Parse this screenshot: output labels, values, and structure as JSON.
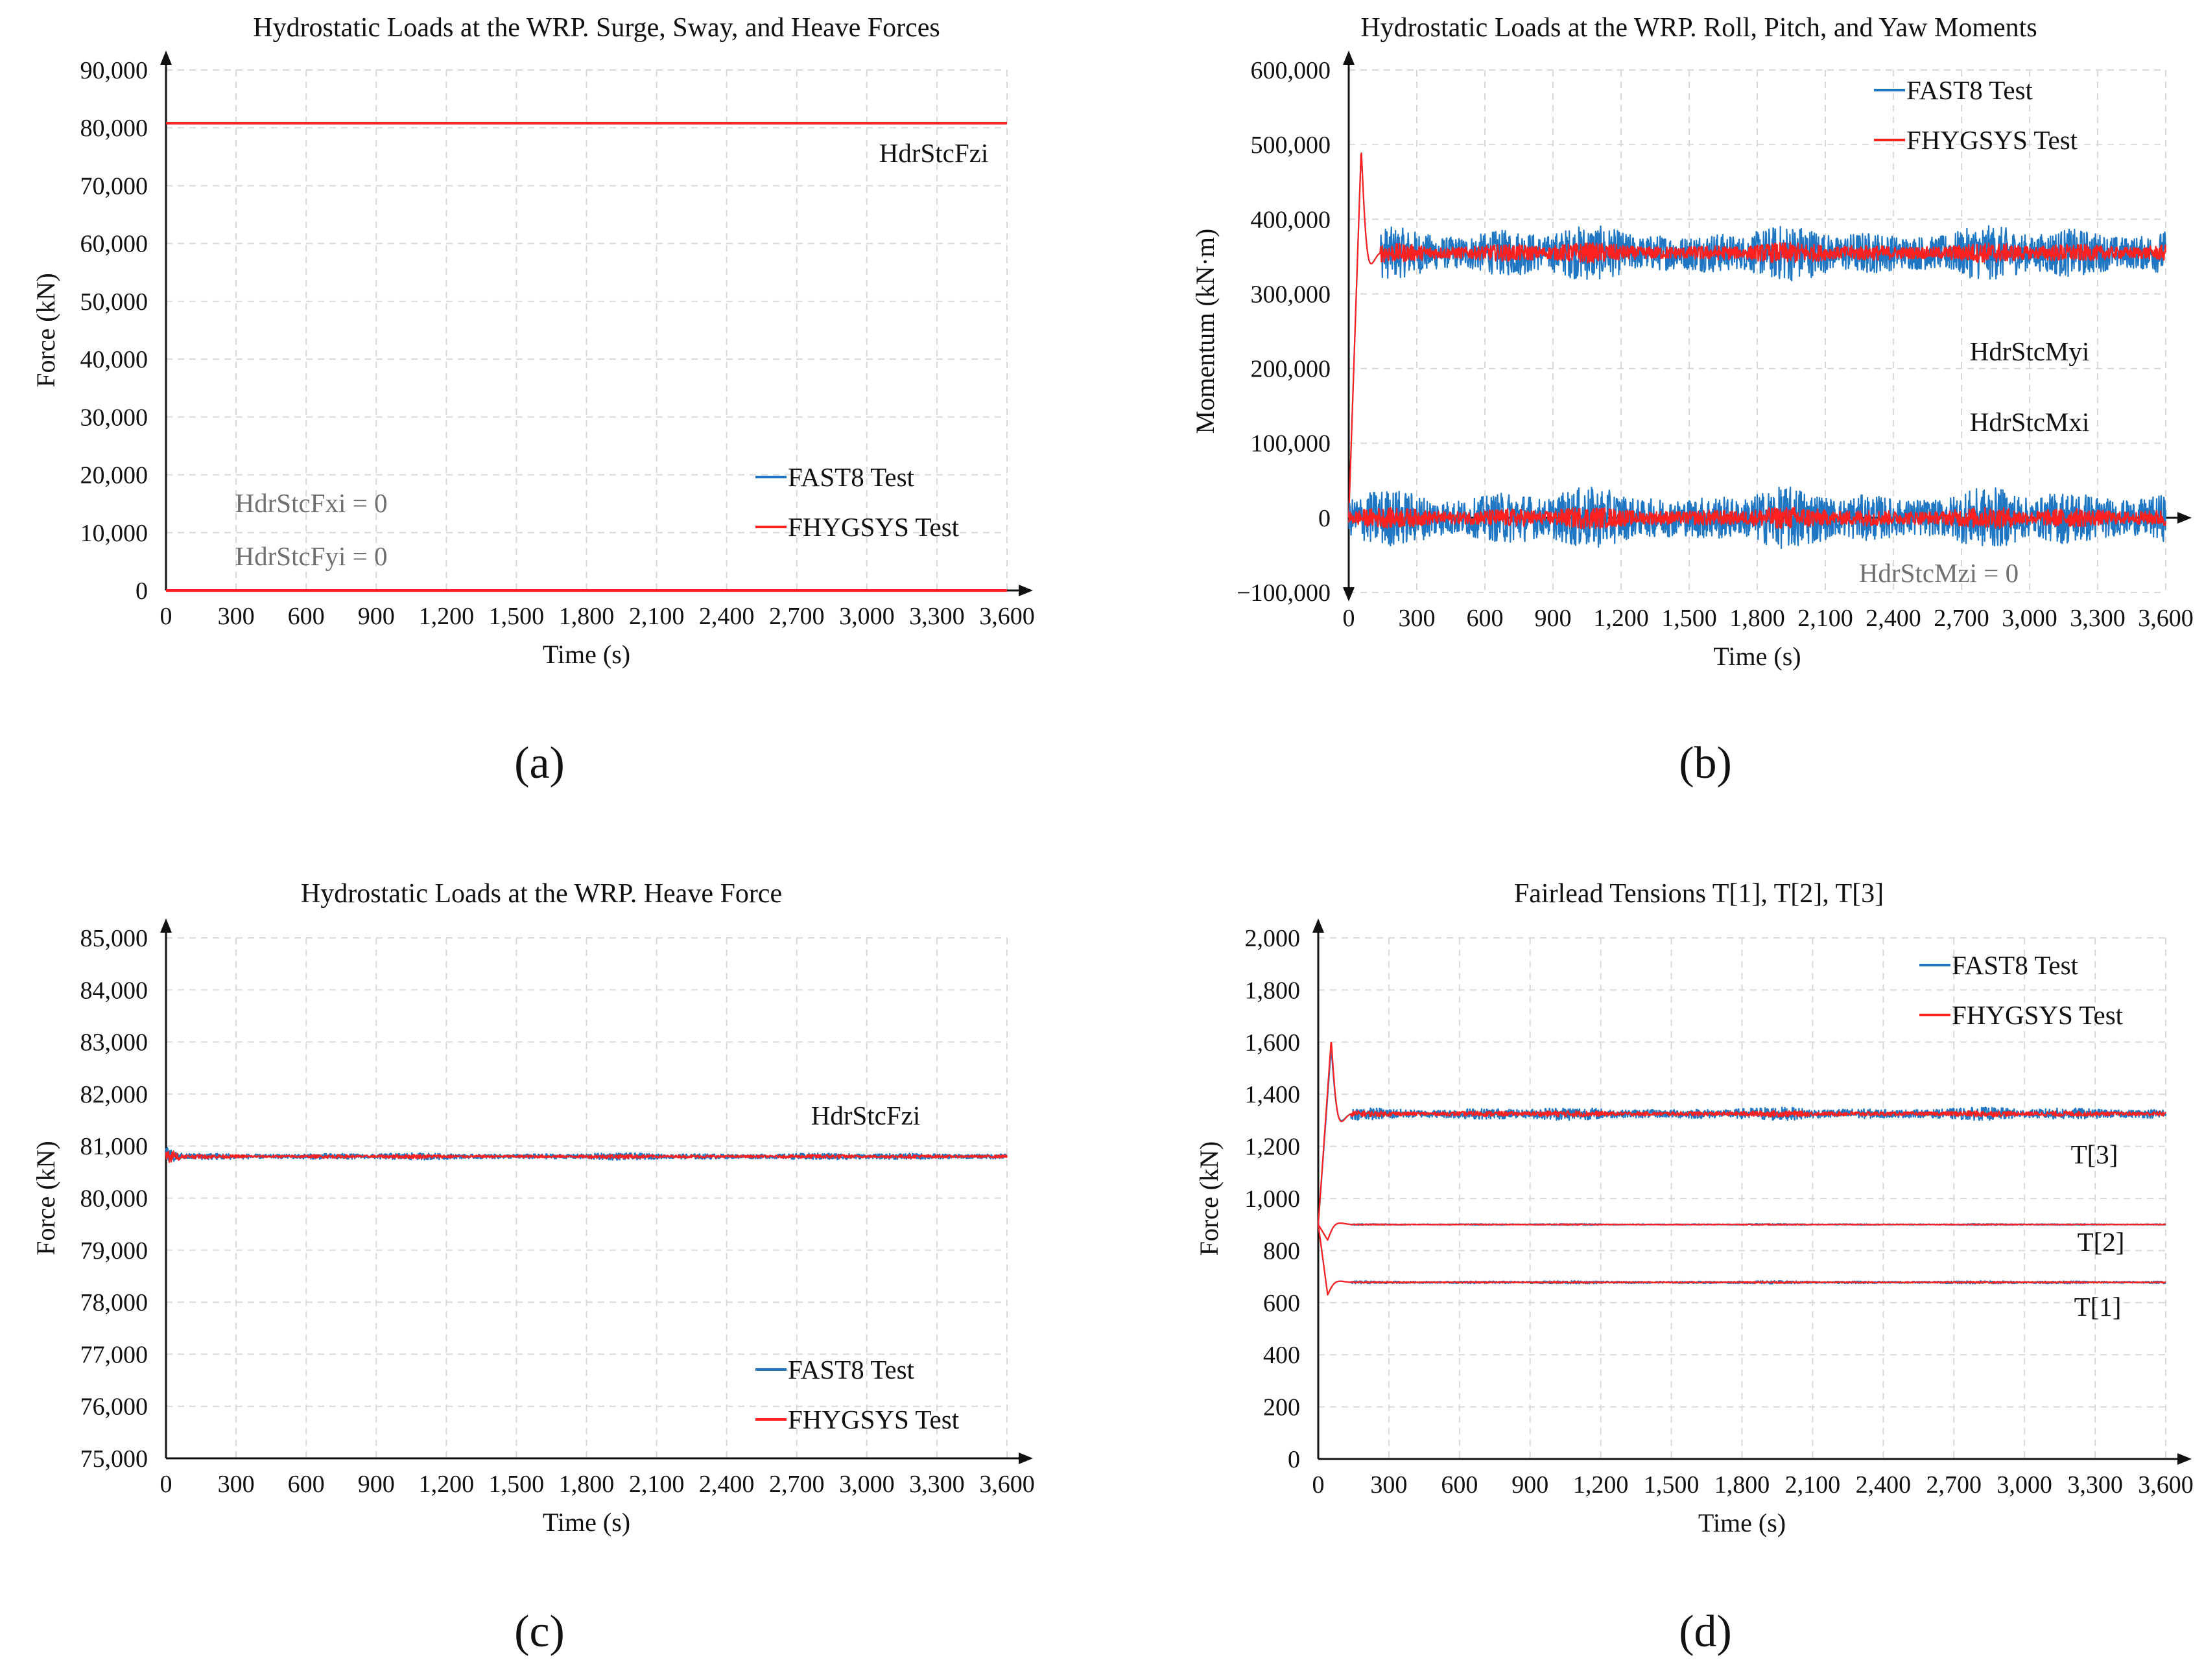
{
  "colors": {
    "fast8": "#1f77c4",
    "fhygsys": "#ff2020",
    "axis": "#111111",
    "grid": "#d9d9d9",
    "annotation_gray": "#707070"
  },
  "chart_data": [
    {
      "id": "a",
      "panel_label": "(a)",
      "type": "line",
      "title": "Hydrostatic Loads at the WRP. Surge, Sway, and Heave Forces",
      "xlabel": "Time (s)",
      "ylabel": "Force (kN)",
      "xlim": [
        0,
        3600
      ],
      "ylim": [
        0,
        90000
      ],
      "xticks": [
        0,
        300,
        600,
        900,
        1200,
        1500,
        1800,
        2100,
        2400,
        2700,
        3000,
        3300,
        3600
      ],
      "xtick_labels": [
        "0",
        "300",
        "600",
        "900",
        "1,200",
        "1,500",
        "1,800",
        "2,100",
        "2,400",
        "2,700",
        "3,000",
        "3,300",
        "3,600"
      ],
      "yticks": [
        0,
        10000,
        20000,
        30000,
        40000,
        50000,
        60000,
        70000,
        80000,
        90000
      ],
      "ytick_labels": [
        "0",
        "10,000",
        "20,000",
        "30,000",
        "40,000",
        "50,000",
        "60,000",
        "70,000",
        "80,000",
        "90,000"
      ],
      "legend": [
        "FAST8 Test",
        "FHYGSYS Test"
      ],
      "legend_position": "bottom-right",
      "annotations": [
        "HdrStcFzi",
        "HdrStcFxi = 0",
        "HdrStcFyi = 0"
      ],
      "series": [
        {
          "name": "FAST8 Test",
          "label": "HdrStcFzi",
          "mean": 80800,
          "noise": 0
        },
        {
          "name": "FHYGSYS Test",
          "label": "HdrStcFzi",
          "mean": 80800,
          "noise": 0
        },
        {
          "name": "FAST8 Test",
          "label": "HdrStcFxi",
          "mean": 0,
          "noise": 0
        },
        {
          "name": "FHYGSYS Test",
          "label": "HdrStcFyi",
          "mean": 0,
          "noise": 0
        }
      ]
    },
    {
      "id": "b",
      "panel_label": "(b)",
      "type": "line",
      "title": "Hydrostatic Loads at the WRP. Roll, Pitch, and Yaw Moments",
      "xlabel": "Time (s)",
      "ylabel": "Momentum (kN·m)",
      "xlim": [
        0,
        3600
      ],
      "ylim": [
        -100000,
        600000
      ],
      "xticks": [
        0,
        300,
        600,
        900,
        1200,
        1500,
        1800,
        2100,
        2400,
        2700,
        3000,
        3300,
        3600
      ],
      "xtick_labels": [
        "0",
        "300",
        "600",
        "900",
        "1,200",
        "1,500",
        "1,800",
        "2,100",
        "2,400",
        "2,700",
        "3,000",
        "3,300",
        "3,600"
      ],
      "yticks": [
        -100000,
        0,
        100000,
        200000,
        300000,
        400000,
        500000,
        600000
      ],
      "ytick_labels": [
        "−100,000",
        "0",
        "100,000",
        "200,000",
        "300,000",
        "400,000",
        "500,000",
        "600,000"
      ],
      "legend": [
        "FAST8 Test",
        "FHYGSYS Test"
      ],
      "legend_position": "top-right",
      "annotations": [
        "HdrStcMyi",
        "HdrStcMxi",
        "HdrStcMzi = 0"
      ],
      "series": [
        {
          "name": "FAST8 Test",
          "label": "HdrStcMyi",
          "mean": 355000,
          "noise": 38000,
          "peak": 495000
        },
        {
          "name": "FHYGSYS Test",
          "label": "HdrStcMyi",
          "mean": 355000,
          "noise": 14000,
          "peak": 495000
        },
        {
          "name": "FAST8 Test",
          "label": "HdrStcMxi",
          "mean": 0,
          "noise": 42000
        },
        {
          "name": "FHYGSYS Test",
          "label": "HdrStcMxi",
          "mean": 0,
          "noise": 15000
        }
      ]
    },
    {
      "id": "c",
      "panel_label": "(c)",
      "type": "line",
      "title": "Hydrostatic Loads at the WRP. Heave Force",
      "xlabel": "Time (s)",
      "ylabel": "Force (kN)",
      "xlim": [
        0,
        3600
      ],
      "ylim": [
        75000,
        85000
      ],
      "xticks": [
        0,
        300,
        600,
        900,
        1200,
        1500,
        1800,
        2100,
        2400,
        2700,
        3000,
        3300,
        3600
      ],
      "xtick_labels": [
        "0",
        "300",
        "600",
        "900",
        "1,200",
        "1,500",
        "1,800",
        "2,100",
        "2,400",
        "2,700",
        "3,000",
        "3,300",
        "3,600"
      ],
      "yticks": [
        75000,
        76000,
        77000,
        78000,
        79000,
        80000,
        81000,
        82000,
        83000,
        84000,
        85000
      ],
      "ytick_labels": [
        "75,000",
        "76,000",
        "77,000",
        "78,000",
        "79,000",
        "80,000",
        "81,000",
        "82,000",
        "83,000",
        "84,000",
        "85,000"
      ],
      "legend": [
        "FAST8 Test",
        "FHYGSYS Test"
      ],
      "legend_position": "bottom-right",
      "annotations": [
        "HdrStcFzi"
      ],
      "series": [
        {
          "name": "FAST8 Test",
          "label": "HdrStcFzi",
          "mean": 80800,
          "noise": 70
        },
        {
          "name": "FHYGSYS Test",
          "label": "HdrStcFzi",
          "mean": 80800,
          "noise": 40
        }
      ]
    },
    {
      "id": "d",
      "panel_label": "(d)",
      "type": "line",
      "title": "Fairlead Tensions T[1], T[2], T[3]",
      "xlabel": "Time (s)",
      "ylabel": "Force (kN)",
      "xlim": [
        0,
        3600
      ],
      "ylim": [
        0,
        2000
      ],
      "xticks": [
        0,
        300,
        600,
        900,
        1200,
        1500,
        1800,
        2100,
        2400,
        2700,
        3000,
        3300,
        3600
      ],
      "xtick_labels": [
        "0",
        "300",
        "600",
        "900",
        "1,200",
        "1,500",
        "1,800",
        "2,100",
        "2,400",
        "2,700",
        "3,000",
        "3,300",
        "3,600"
      ],
      "yticks": [
        0,
        200,
        400,
        600,
        800,
        1000,
        1200,
        1400,
        1600,
        1800,
        2000
      ],
      "ytick_labels": [
        "0",
        "200",
        "400",
        "600",
        "800",
        "1,000",
        "1,200",
        "1,400",
        "1,600",
        "1,800",
        "2,000"
      ],
      "legend": [
        "FAST8 Test",
        "FHYGSYS Test"
      ],
      "legend_position": "top-right",
      "annotations": [
        "T[3]",
        "T[2]",
        "T[1]"
      ],
      "series": [
        {
          "name": "FAST8 Test",
          "label": "T[3]",
          "mean": 1325,
          "noise": 26,
          "start": 900,
          "peak": 1580
        },
        {
          "name": "FHYGSYS Test",
          "label": "T[3]",
          "mean": 1325,
          "noise": 12,
          "start": 900,
          "peak": 1610
        },
        {
          "name": "FAST8 Test",
          "label": "T[2]",
          "mean": 900,
          "noise": 3,
          "start": 900,
          "dip": 840
        },
        {
          "name": "FHYGSYS Test",
          "label": "T[2]",
          "mean": 900,
          "noise": 2,
          "start": 900,
          "dip": 840
        },
        {
          "name": "FAST8 Test",
          "label": "T[1]",
          "mean": 678,
          "noise": 6,
          "start": 900,
          "dip": 630
        },
        {
          "name": "FHYGSYS Test",
          "label": "T[1]",
          "mean": 678,
          "noise": 3,
          "start": 900,
          "dip": 630
        }
      ]
    }
  ]
}
